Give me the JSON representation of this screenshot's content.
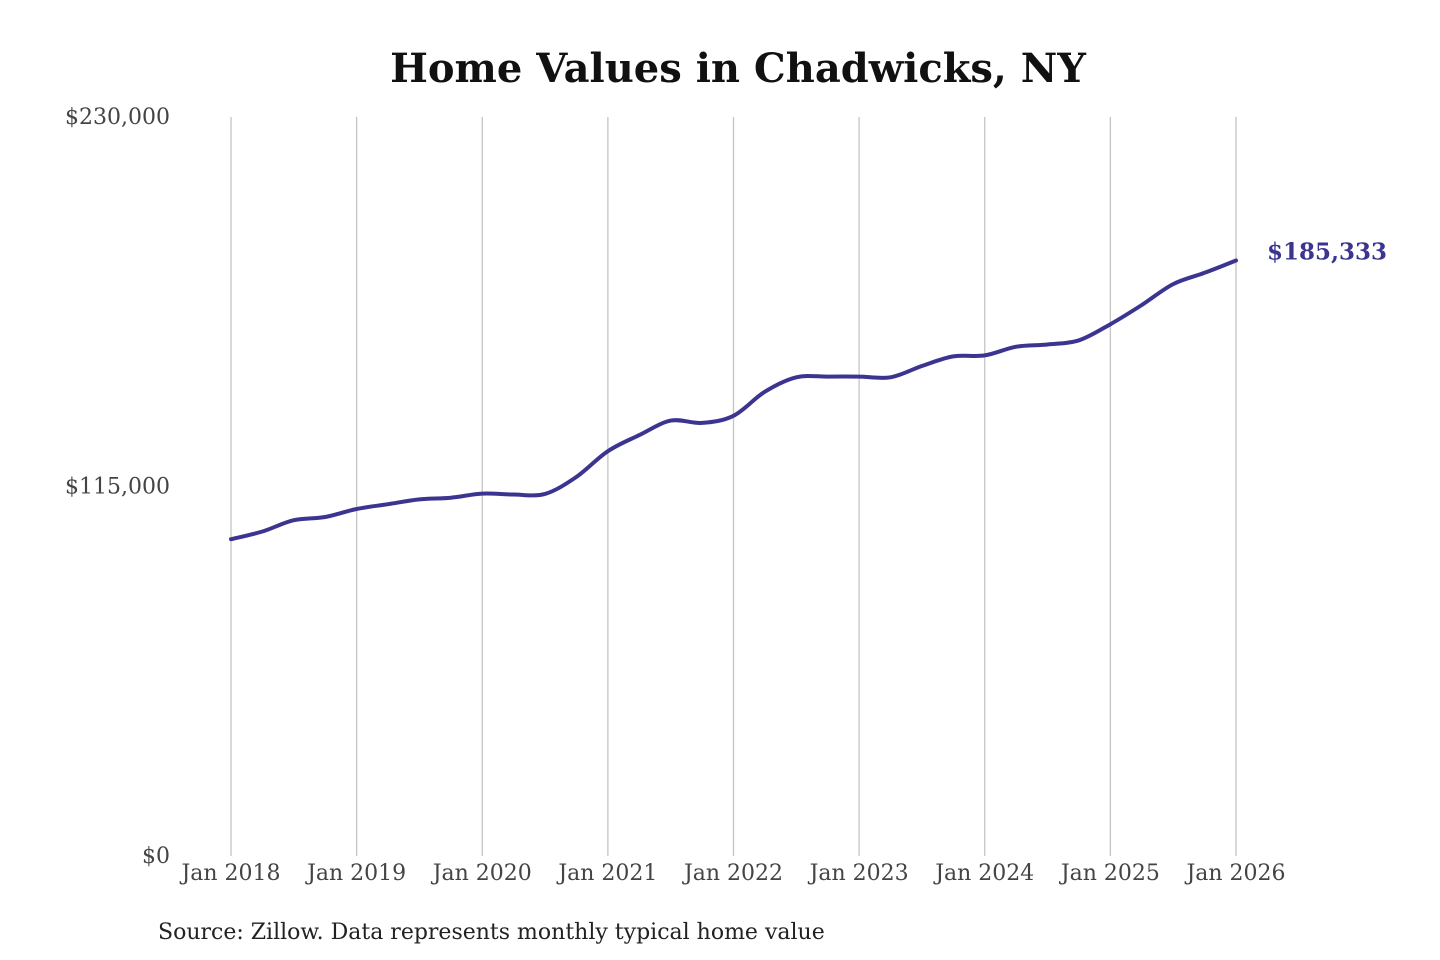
{
  "chart_data": {
    "type": "line",
    "title": "Home Values in Chadwicks, NY",
    "xlabel": "",
    "ylabel": "",
    "x_ticks": [
      "Jan 2018",
      "Jan 2019",
      "Jan 2020",
      "Jan 2021",
      "Jan 2022",
      "Jan 2023",
      "Jan 2024",
      "Jan 2025",
      "Jan 2026"
    ],
    "y_ticks": [
      "$0",
      "$115,000",
      "$230,000"
    ],
    "ylim": [
      0,
      230000
    ],
    "xlim": [
      "2018-01",
      "2026-01"
    ],
    "grid": "vertical",
    "legend": "none",
    "series": [
      {
        "color": "#3b3591",
        "points": [
          {
            "x": "2018-01",
            "y": 98600
          },
          {
            "x": "2018-04",
            "y": 101000
          },
          {
            "x": "2018-07",
            "y": 104500
          },
          {
            "x": "2018-10",
            "y": 105500
          },
          {
            "x": "2019-01",
            "y": 108000
          },
          {
            "x": "2019-04",
            "y": 109500
          },
          {
            "x": "2019-07",
            "y": 111000
          },
          {
            "x": "2019-10",
            "y": 111500
          },
          {
            "x": "2020-01",
            "y": 112800
          },
          {
            "x": "2020-04",
            "y": 112500
          },
          {
            "x": "2020-07",
            "y": 112700
          },
          {
            "x": "2020-10",
            "y": 118000
          },
          {
            "x": "2021-01",
            "y": 126000
          },
          {
            "x": "2021-04",
            "y": 131000
          },
          {
            "x": "2021-07",
            "y": 135500
          },
          {
            "x": "2021-10",
            "y": 134800
          },
          {
            "x": "2022-01",
            "y": 137000
          },
          {
            "x": "2022-04",
            "y": 144500
          },
          {
            "x": "2022-07",
            "y": 149000
          },
          {
            "x": "2022-10",
            "y": 149200
          },
          {
            "x": "2023-01",
            "y": 149200
          },
          {
            "x": "2023-04",
            "y": 149000
          },
          {
            "x": "2023-07",
            "y": 152500
          },
          {
            "x": "2023-10",
            "y": 155500
          },
          {
            "x": "2024-01",
            "y": 155800
          },
          {
            "x": "2024-04",
            "y": 158500
          },
          {
            "x": "2024-07",
            "y": 159200
          },
          {
            "x": "2024-10",
            "y": 160500
          },
          {
            "x": "2025-01",
            "y": 165500
          },
          {
            "x": "2025-04",
            "y": 171500
          },
          {
            "x": "2025-07",
            "y": 178000
          },
          {
            "x": "2025-10",
            "y": 181500
          },
          {
            "x": "2026-01",
            "y": 185333
          }
        ],
        "end_label": "$185,333"
      }
    ]
  },
  "source_note": "Source: Zillow. Data represents monthly typical home value"
}
